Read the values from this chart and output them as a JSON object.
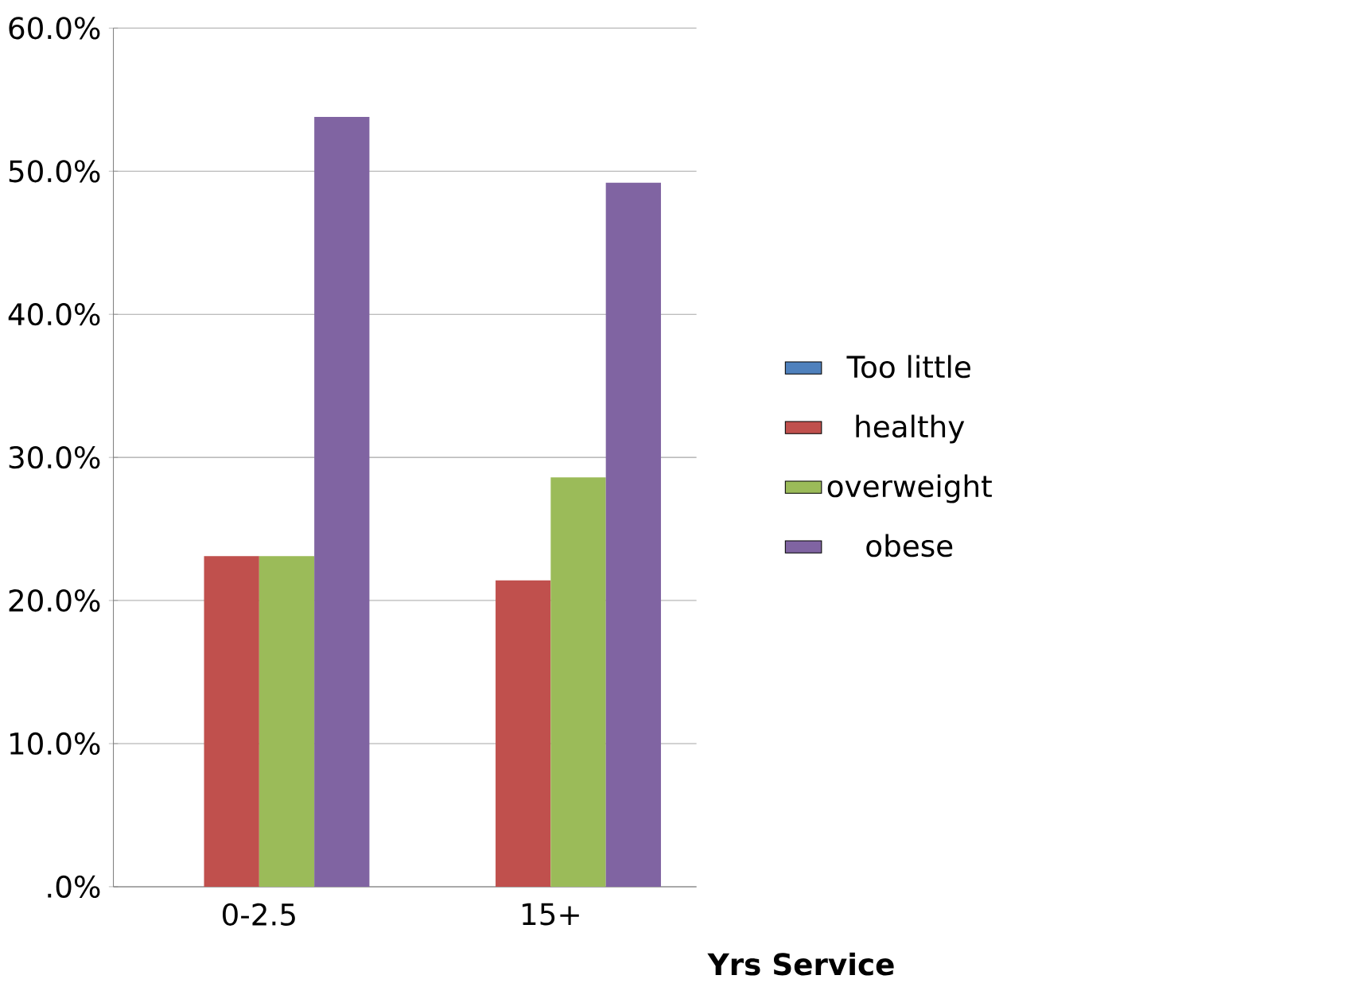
{
  "chart_data": {
    "type": "bar",
    "xlabel": "Yrs Service",
    "categories": [
      "0-2.5",
      "15+"
    ],
    "series": [
      {
        "name": "Too little",
        "color": "#4f81bd",
        "values": [
          0,
          0
        ]
      },
      {
        "name": "healthy",
        "color": "#c0504d",
        "values": [
          23.1,
          21.4
        ]
      },
      {
        "name": "overweight",
        "color": "#9bbb59",
        "values": [
          23.1,
          28.6
        ]
      },
      {
        "name": "obese",
        "color": "#8064a2",
        "values": [
          53.8,
          49.2
        ]
      }
    ],
    "ylim": [
      0,
      60
    ],
    "yticks": [
      {
        "value": 0,
        "label": ".0%"
      },
      {
        "value": 10,
        "label": "10.0%"
      },
      {
        "value": 20,
        "label": "20.0%"
      },
      {
        "value": 30,
        "label": "30.0%"
      },
      {
        "value": 40,
        "label": "40.0%"
      },
      {
        "value": 50,
        "label": "50.0%"
      },
      {
        "value": 60,
        "label": "60.0%"
      }
    ],
    "grid": "y",
    "legend": "right"
  }
}
